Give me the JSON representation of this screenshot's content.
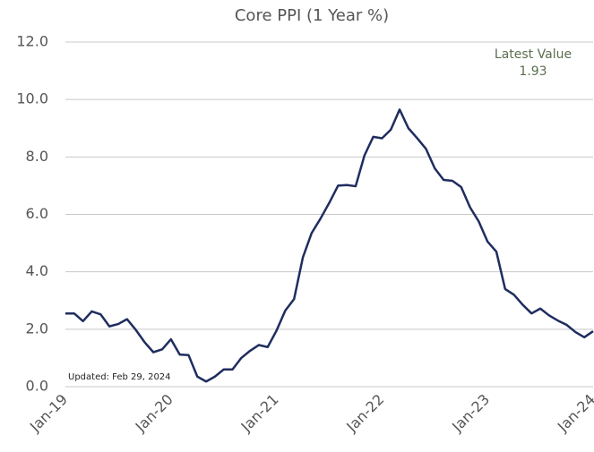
{
  "chart_data": {
    "type": "line",
    "title": "Core PPI (1 Year %)",
    "annotations": {
      "latest_label": "Latest Value",
      "latest_value": 1.93,
      "updated": "Updated: Feb 29, 2024"
    },
    "categories": [
      "Jan-19",
      null,
      null,
      null,
      null,
      null,
      null,
      null,
      null,
      null,
      null,
      null,
      "Jan-20",
      null,
      null,
      null,
      null,
      null,
      null,
      null,
      null,
      null,
      null,
      null,
      "Jan-21",
      null,
      null,
      null,
      null,
      null,
      null,
      null,
      null,
      null,
      null,
      null,
      "Jan-22",
      null,
      null,
      null,
      null,
      null,
      null,
      null,
      null,
      null,
      null,
      null,
      "Jan-23",
      null,
      null,
      null,
      null,
      null,
      null,
      null,
      null,
      null,
      null,
      null,
      "Jan-24"
    ],
    "values": [
      2.55,
      2.55,
      2.28,
      2.62,
      2.52,
      2.1,
      2.18,
      2.35,
      1.98,
      1.55,
      1.2,
      1.3,
      1.65,
      1.12,
      1.1,
      0.35,
      0.18,
      0.35,
      0.6,
      0.6,
      1.0,
      1.25,
      1.45,
      1.38,
      1.95,
      2.65,
      3.05,
      4.5,
      5.35,
      5.85,
      6.4,
      7.0,
      7.02,
      6.98,
      8.05,
      8.7,
      8.65,
      8.95,
      9.65,
      9.0,
      8.65,
      8.28,
      7.6,
      7.2,
      7.17,
      6.95,
      6.25,
      5.75,
      5.05,
      4.7,
      3.4,
      3.2,
      2.85,
      2.55,
      2.72,
      2.48,
      2.3,
      2.15,
      1.9,
      1.72,
      1.93
    ],
    "color": "#1f2d5f",
    "ylim": [
      0,
      12
    ],
    "yticks": [
      {
        "value": 0,
        "label": "0.0"
      },
      {
        "value": 2,
        "label": "2.0"
      },
      {
        "value": 4,
        "label": "4.0"
      },
      {
        "value": 6,
        "label": "6.0"
      },
      {
        "value": 8,
        "label": "8.0"
      },
      {
        "value": 10,
        "label": "10.0"
      },
      {
        "value": 12,
        "label": "12.0"
      }
    ],
    "grid": true
  }
}
